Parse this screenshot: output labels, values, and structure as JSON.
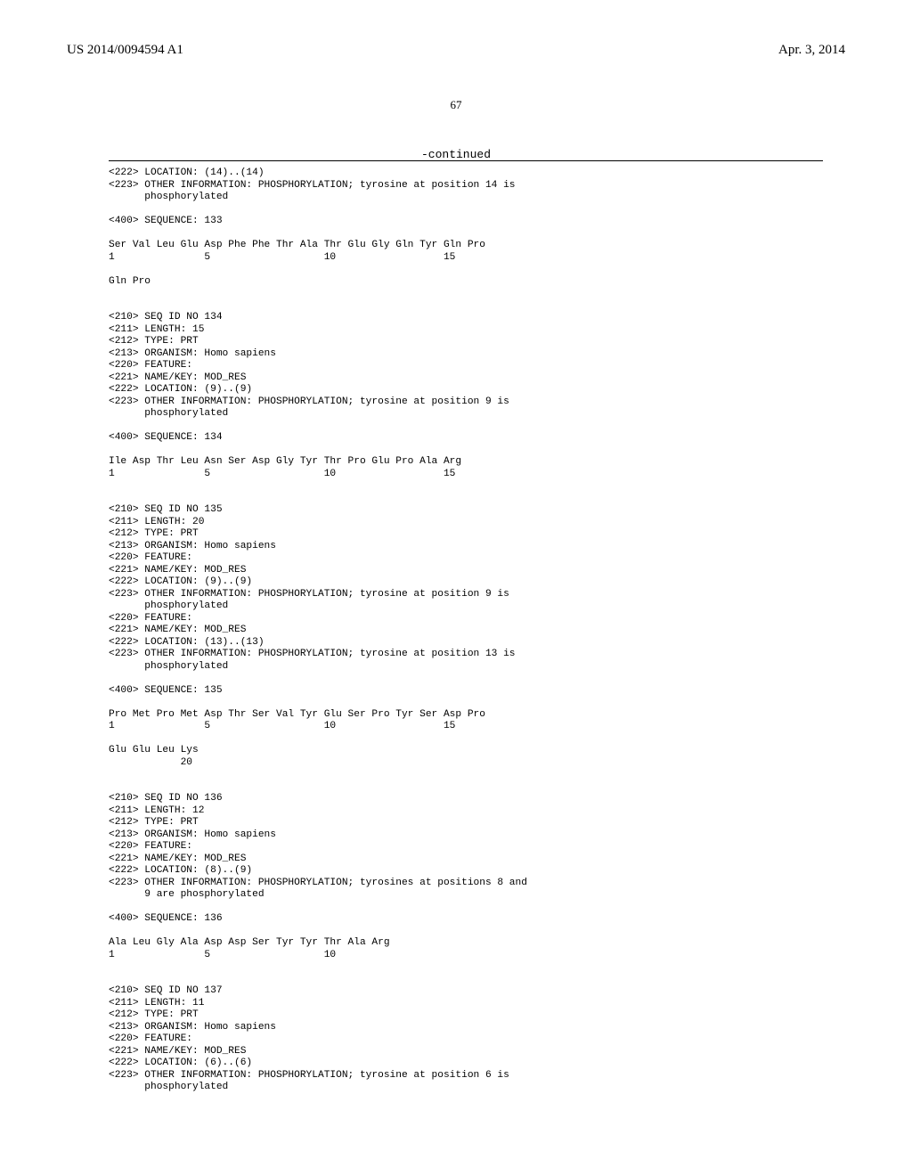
{
  "header": {
    "publication_number": "US 2014/0094594 A1",
    "date": "Apr. 3, 2014"
  },
  "page_number": "67",
  "continued_label": "-continued",
  "sequences": [
    {
      "id": "133",
      "features_pre": [
        "<222> LOCATION: (14)..(14)",
        "<223> OTHER INFORMATION: PHOSPHORYLATION; tyrosine at position 14 is",
        "      phosphorylated"
      ],
      "seq_header": "<400> SEQUENCE: 133",
      "residues_lines": [
        "Ser Val Leu Glu Asp Phe Phe Thr Ala Thr Glu Gly Gln Tyr Gln Pro",
        "1               5                   10                  15",
        "",
        "Gln Pro"
      ]
    },
    {
      "id": "134",
      "annotations": [
        "<210> SEQ ID NO 134",
        "<211> LENGTH: 15",
        "<212> TYPE: PRT",
        "<213> ORGANISM: Homo sapiens",
        "<220> FEATURE:",
        "<221> NAME/KEY: MOD_RES",
        "<222> LOCATION: (9)..(9)",
        "<223> OTHER INFORMATION: PHOSPHORYLATION; tyrosine at position 9 is",
        "      phosphorylated"
      ],
      "seq_header": "<400> SEQUENCE: 134",
      "residues_lines": [
        "Ile Asp Thr Leu Asn Ser Asp Gly Tyr Thr Pro Glu Pro Ala Arg",
        "1               5                   10                  15"
      ]
    },
    {
      "id": "135",
      "annotations": [
        "<210> SEQ ID NO 135",
        "<211> LENGTH: 20",
        "<212> TYPE: PRT",
        "<213> ORGANISM: Homo sapiens",
        "<220> FEATURE:",
        "<221> NAME/KEY: MOD_RES",
        "<222> LOCATION: (9)..(9)",
        "<223> OTHER INFORMATION: PHOSPHORYLATION; tyrosine at position 9 is",
        "      phosphorylated",
        "<220> FEATURE:",
        "<221> NAME/KEY: MOD_RES",
        "<222> LOCATION: (13)..(13)",
        "<223> OTHER INFORMATION: PHOSPHORYLATION; tyrosine at position 13 is",
        "      phosphorylated"
      ],
      "seq_header": "<400> SEQUENCE: 135",
      "residues_lines": [
        "Pro Met Pro Met Asp Thr Ser Val Tyr Glu Ser Pro Tyr Ser Asp Pro",
        "1               5                   10                  15",
        "",
        "Glu Glu Leu Lys",
        "            20"
      ]
    },
    {
      "id": "136",
      "annotations": [
        "<210> SEQ ID NO 136",
        "<211> LENGTH: 12",
        "<212> TYPE: PRT",
        "<213> ORGANISM: Homo sapiens",
        "<220> FEATURE:",
        "<221> NAME/KEY: MOD_RES",
        "<222> LOCATION: (8)..(9)",
        "<223> OTHER INFORMATION: PHOSPHORYLATION; tyrosines at positions 8 and",
        "      9 are phosphorylated"
      ],
      "seq_header": "<400> SEQUENCE: 136",
      "residues_lines": [
        "Ala Leu Gly Ala Asp Asp Ser Tyr Tyr Thr Ala Arg",
        "1               5                   10"
      ]
    },
    {
      "id": "137",
      "annotations": [
        "<210> SEQ ID NO 137",
        "<211> LENGTH: 11",
        "<212> TYPE: PRT",
        "<213> ORGANISM: Homo sapiens",
        "<220> FEATURE:",
        "<221> NAME/KEY: MOD_RES",
        "<222> LOCATION: (6)..(6)",
        "<223> OTHER INFORMATION: PHOSPHORYLATION; tyrosine at position 6 is",
        "      phosphorylated"
      ]
    }
  ]
}
